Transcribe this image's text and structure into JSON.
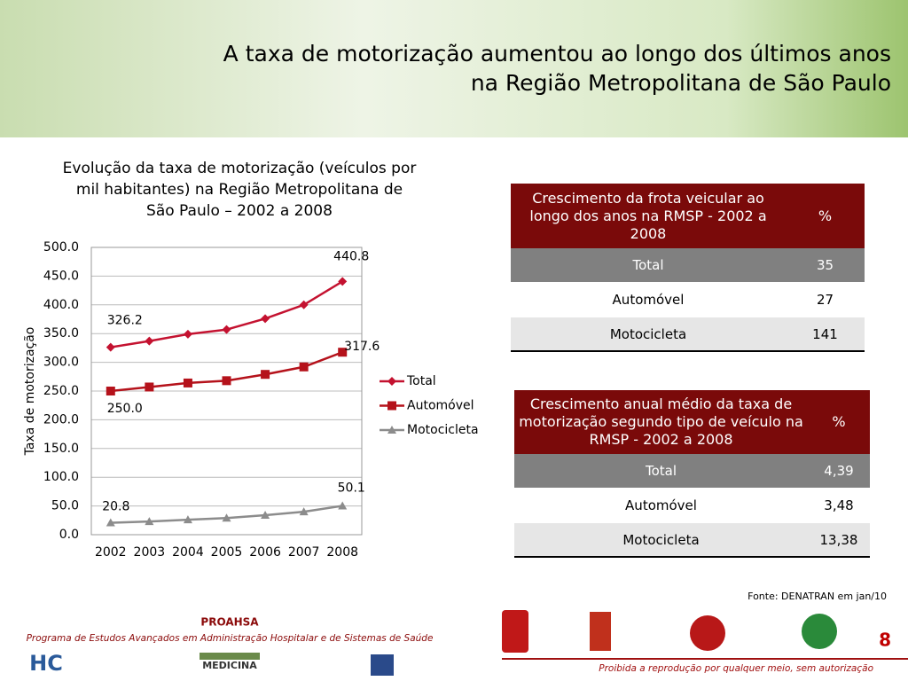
{
  "header": {
    "title_lines": [
      "A taxa de motorização aumentou ao longo dos últimos anos",
      "na Região Metropolitana de São Paulo"
    ]
  },
  "chart_data": {
    "type": "line",
    "title_lines": [
      "Evolução da taxa de motorização (veículos por",
      "mil habitantes) na Região Metropolitana de",
      "São Paulo – 2002 a 2008"
    ],
    "y_label": "Taxa de motorização",
    "categories": [
      "2002",
      "2003",
      "2004",
      "2005",
      "2006",
      "2007",
      "2008"
    ],
    "series": [
      {
        "name": "Total",
        "color": "#c41230",
        "marker": "diamond",
        "values": [
          326.2,
          337,
          349,
          357,
          376,
          400,
          440.8
        ],
        "value_labels": [
          "326.2",
          null,
          null,
          null,
          null,
          null,
          "440.8"
        ]
      },
      {
        "name": "Automóvel",
        "color": "#b5121b",
        "marker": "square",
        "values": [
          250.0,
          257,
          264,
          268,
          279,
          292,
          317.6
        ],
        "value_labels": [
          "250.0",
          null,
          null,
          null,
          null,
          null,
          "317.6"
        ]
      },
      {
        "name": "Motocicleta",
        "color": "#8c8c8c",
        "marker": "triangle",
        "values": [
          20.8,
          23,
          26,
          29,
          34,
          40,
          50.1
        ],
        "value_labels": [
          "20.8",
          null,
          null,
          null,
          null,
          null,
          "50.1"
        ]
      }
    ],
    "ylim": [
      0,
      500
    ],
    "yticks": [
      {
        "value": 0,
        "label": "0.0"
      },
      {
        "value": 50,
        "label": "50.0"
      },
      {
        "value": 100,
        "label": "100.0"
      },
      {
        "value": 150,
        "label": "150.0"
      },
      {
        "value": 200,
        "label": "200.0"
      },
      {
        "value": 250,
        "label": "250.0"
      },
      {
        "value": 300,
        "label": "300.0"
      },
      {
        "value": 350,
        "label": "350.0"
      },
      {
        "value": 400,
        "label": "400.0"
      },
      {
        "value": 450,
        "label": "450.0"
      },
      {
        "value": 500,
        "label": "500.0"
      }
    ],
    "grid": true,
    "legend": "right"
  },
  "tables": [
    {
      "header": [
        "Crescimento da frota veicular ao longo dos anos na RMSP - 2002 a 2008",
        "%"
      ],
      "rows": [
        [
          "Total",
          35
        ],
        [
          "Automóvel",
          27
        ],
        [
          "Motocicleta",
          141
        ]
      ]
    },
    {
      "header": [
        "Crescimento anual médio da taxa de motorização segundo tipo de veículo na RMSP - 2002 a 2008",
        "%"
      ],
      "rows": [
        [
          "Total",
          "4,39"
        ],
        [
          "Automóvel",
          "3,48"
        ],
        [
          "Motocicleta",
          "13,38"
        ]
      ]
    }
  ],
  "footer": {
    "source": "Fonte: DENATRAN em jan/10",
    "org": "PROAHSA",
    "program": "Programa de Estudos Avançados em Administração Hospitalar e de Sistemas de Saúde",
    "page": "8",
    "notice": "Proibida a reprodução por qualquer meio, sem autorização",
    "logo_hc": "HC",
    "logo_med": "MEDICINA"
  }
}
